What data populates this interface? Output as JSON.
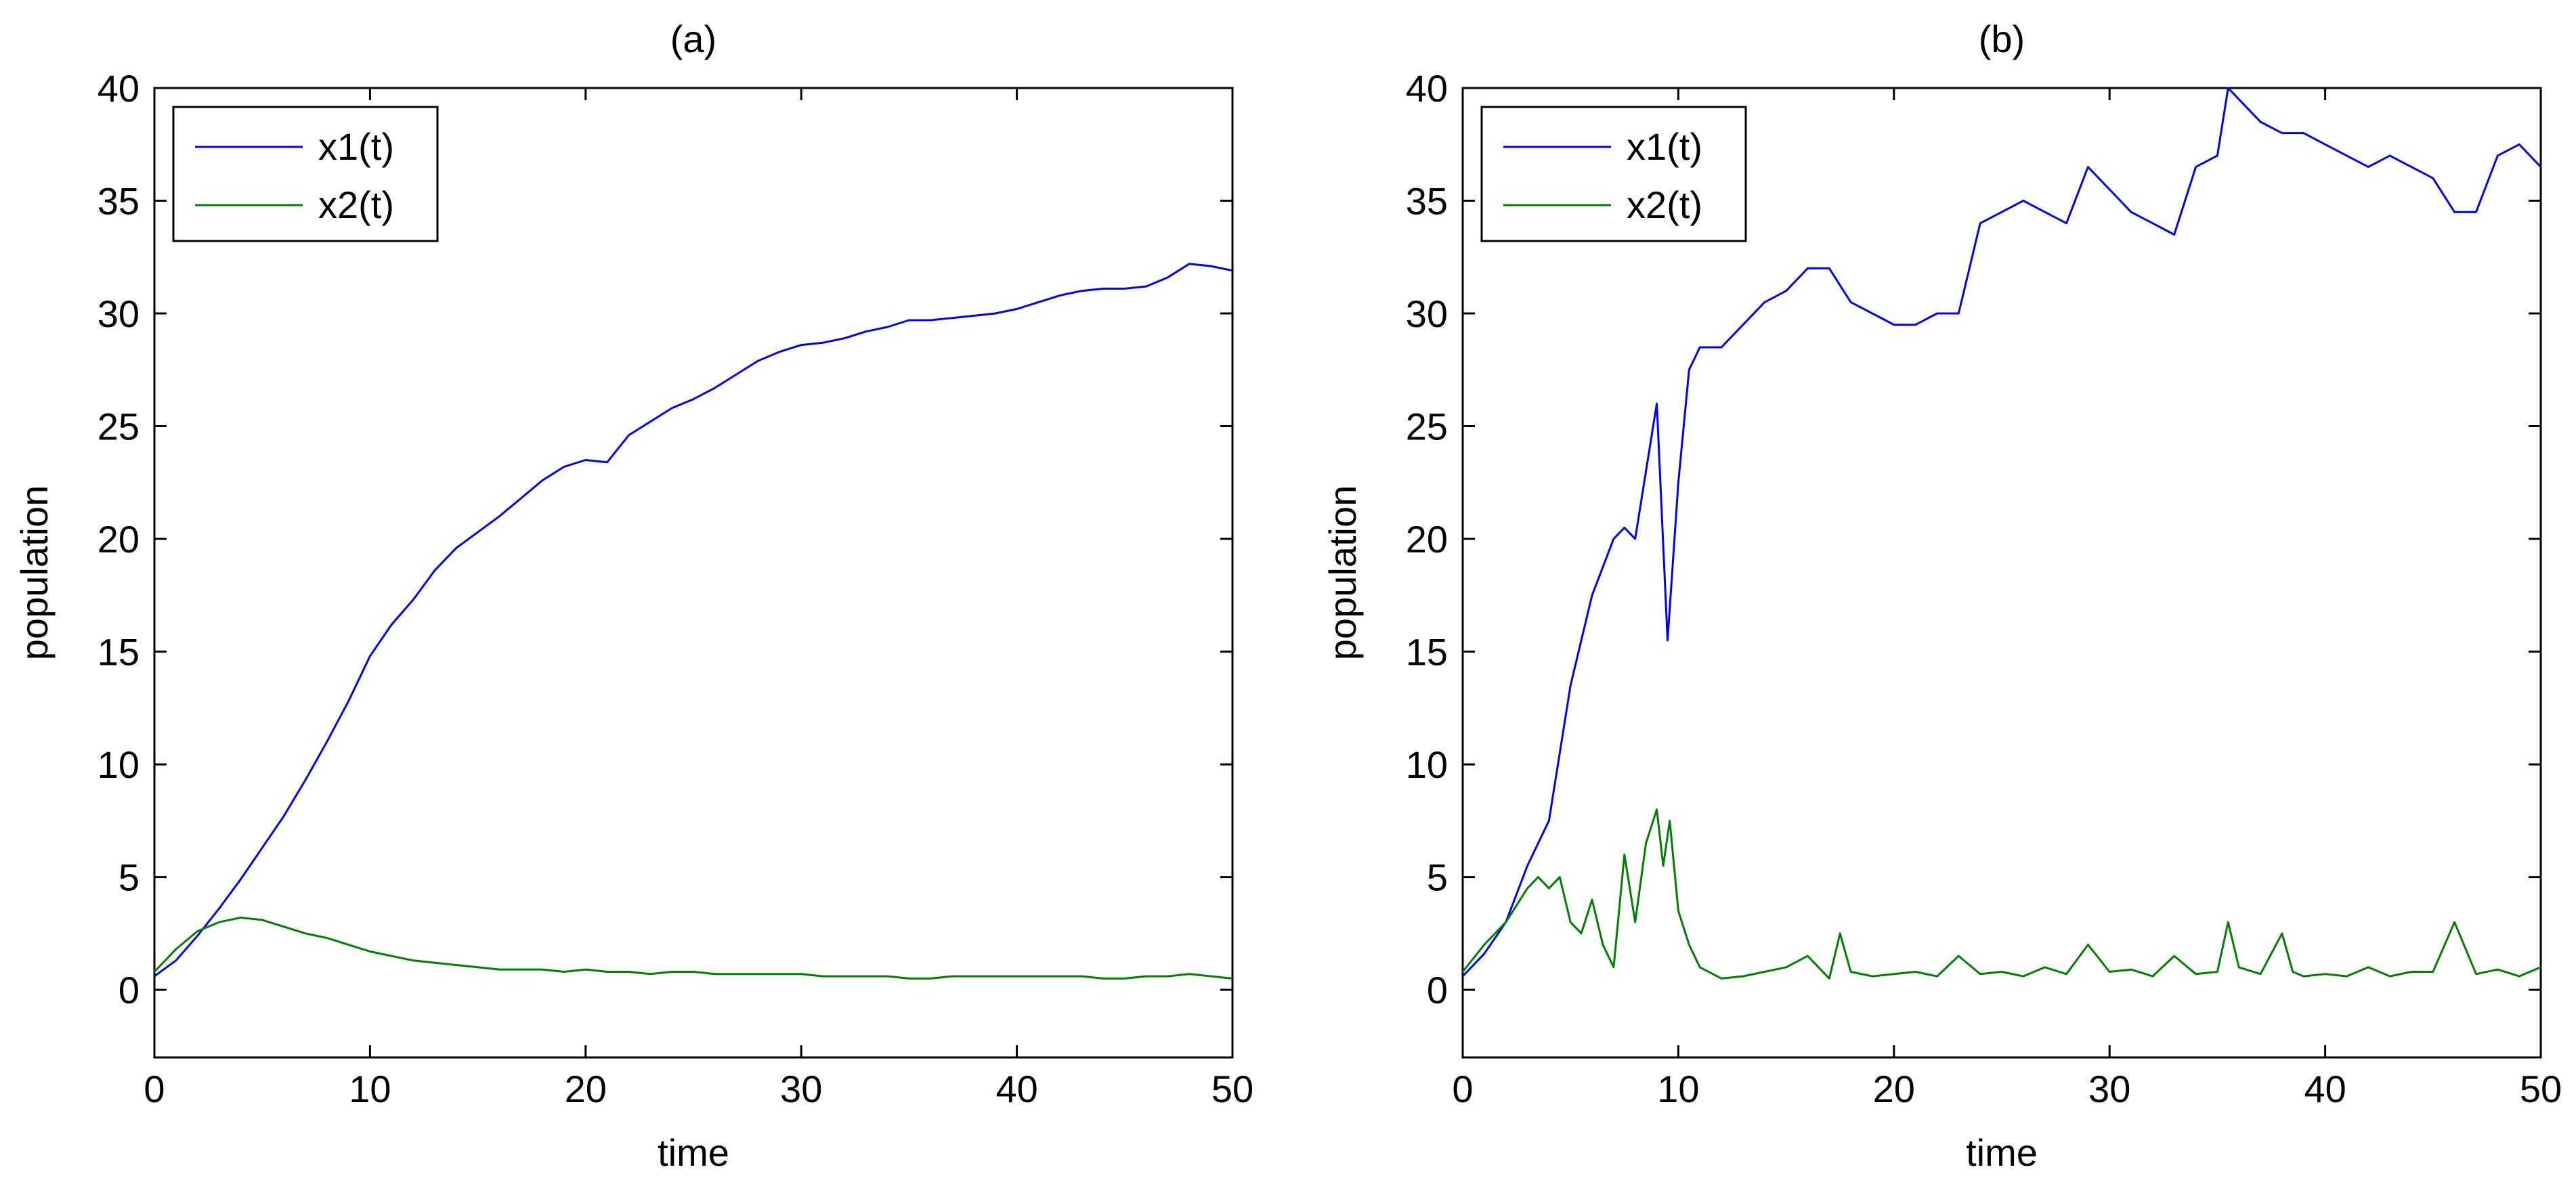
{
  "chart_data": [
    {
      "type": "line",
      "title": "(a)",
      "xlabel": "time",
      "ylabel": "population",
      "xlim": [
        0,
        50
      ],
      "ylim": [
        -3,
        40
      ],
      "xticks": [
        "0",
        "10",
        "20",
        "30",
        "40",
        "50"
      ],
      "yticks": [
        "0",
        "5",
        "10",
        "15",
        "20",
        "25",
        "30",
        "35",
        "40"
      ],
      "legend_position": "top-left",
      "series": [
        {
          "name": "x1(t)",
          "color": "#0000ff",
          "x": [
            0,
            1,
            2,
            3,
            4,
            5,
            6,
            7,
            8,
            9,
            10,
            11,
            12,
            13,
            14,
            15,
            16,
            17,
            18,
            19,
            20,
            21,
            22,
            23,
            24,
            25,
            26,
            27,
            28,
            29,
            30,
            31,
            32,
            33,
            34,
            35,
            36,
            37,
            38,
            39,
            40,
            41,
            42,
            43,
            44,
            45,
            46,
            47,
            48,
            49,
            50
          ],
          "y": [
            0.6,
            1.3,
            2.4,
            3.6,
            4.9,
            6.3,
            7.7,
            9.3,
            11.0,
            12.8,
            14.8,
            16.2,
            17.3,
            18.6,
            19.6,
            20.3,
            21.0,
            21.8,
            22.6,
            23.2,
            23.5,
            23.4,
            24.6,
            25.2,
            25.8,
            26.2,
            26.7,
            27.3,
            27.9,
            28.3,
            28.6,
            28.7,
            28.9,
            29.2,
            29.4,
            29.7,
            29.7,
            29.8,
            29.9,
            30.0,
            30.2,
            30.5,
            30.8,
            31.0,
            31.1,
            31.1,
            31.2,
            31.6,
            32.2,
            32.1,
            31.9
          ]
        },
        {
          "name": "x2(t)",
          "color": "#008000",
          "x": [
            0,
            1,
            2,
            3,
            4,
            5,
            6,
            7,
            8,
            9,
            10,
            11,
            12,
            13,
            14,
            15,
            16,
            17,
            18,
            19,
            20,
            21,
            22,
            23,
            24,
            25,
            26,
            27,
            28,
            29,
            30,
            31,
            32,
            33,
            34,
            35,
            36,
            37,
            38,
            39,
            40,
            41,
            42,
            43,
            44,
            45,
            46,
            47,
            48,
            49,
            50
          ],
          "y": [
            0.8,
            1.8,
            2.6,
            3.0,
            3.2,
            3.1,
            2.8,
            2.5,
            2.3,
            2.0,
            1.7,
            1.5,
            1.3,
            1.2,
            1.1,
            1.0,
            0.9,
            0.9,
            0.9,
            0.8,
            0.9,
            0.8,
            0.8,
            0.7,
            0.8,
            0.8,
            0.7,
            0.7,
            0.7,
            0.7,
            0.7,
            0.6,
            0.6,
            0.6,
            0.6,
            0.5,
            0.5,
            0.6,
            0.6,
            0.6,
            0.6,
            0.6,
            0.6,
            0.6,
            0.5,
            0.5,
            0.6,
            0.6,
            0.7,
            0.6,
            0.5
          ]
        }
      ]
    },
    {
      "type": "line",
      "title": "(b)",
      "xlabel": "time",
      "ylabel": "population",
      "xlim": [
        0,
        50
      ],
      "ylim": [
        -3,
        40
      ],
      "xticks": [
        "0",
        "10",
        "20",
        "30",
        "40",
        "50"
      ],
      "yticks": [
        "0",
        "5",
        "10",
        "15",
        "20",
        "25",
        "30",
        "35",
        "40"
      ],
      "legend_position": "top-left",
      "series": [
        {
          "name": "x1(t)",
          "color": "#0000ff",
          "x": [
            0,
            1,
            2,
            3,
            4,
            5,
            6,
            7,
            7.5,
            8,
            8.5,
            9,
            9.5,
            10,
            10.5,
            11,
            12,
            13,
            14,
            15,
            16,
            17,
            18,
            19,
            20,
            21,
            22,
            23,
            24,
            25,
            26,
            27,
            28,
            29,
            30,
            31,
            32,
            33,
            34,
            35,
            35.5,
            36,
            37,
            38,
            39,
            40,
            41,
            42,
            43,
            44,
            45,
            46,
            47,
            48,
            49,
            50
          ],
          "y": [
            0.6,
            1.6,
            3.0,
            5.5,
            7.5,
            13.5,
            17.5,
            20.0,
            20.5,
            20.0,
            23.0,
            26.0,
            15.5,
            22.5,
            27.5,
            28.5,
            28.5,
            29.5,
            30.5,
            31.0,
            32.0,
            32.0,
            30.5,
            30.0,
            29.5,
            29.5,
            30.0,
            30.0,
            34.0,
            34.5,
            35.0,
            34.5,
            34.0,
            36.5,
            35.5,
            34.5,
            34.0,
            33.5,
            36.5,
            37.0,
            40.0,
            39.5,
            38.5,
            38.0,
            38.0,
            37.5,
            37.0,
            36.5,
            37.0,
            36.5,
            36.0,
            34.5,
            34.5,
            37.0,
            37.5,
            36.5
          ]
        },
        {
          "name": "x2(t)",
          "color": "#008000",
          "x": [
            0,
            1,
            2,
            3,
            3.5,
            4,
            4.5,
            5,
            5.5,
            6,
            6.5,
            7,
            7.5,
            8,
            8.5,
            9,
            9.3,
            9.6,
            10,
            10.5,
            11,
            12,
            13,
            14,
            15,
            16,
            17,
            17.5,
            18,
            19,
            20,
            21,
            22,
            23,
            24,
            25,
            26,
            27,
            28,
            29,
            30,
            31,
            32,
            33,
            34,
            35,
            35.5,
            36,
            37,
            38,
            38.5,
            39,
            40,
            41,
            42,
            43,
            44,
            45,
            46,
            47,
            48,
            49,
            50
          ],
          "y": [
            0.8,
            2.0,
            3.0,
            4.5,
            5.0,
            4.5,
            5.0,
            3.0,
            2.5,
            4.0,
            2.0,
            1.0,
            6.0,
            3.0,
            6.5,
            8.0,
            5.5,
            7.5,
            3.5,
            2.0,
            1.0,
            0.5,
            0.6,
            0.8,
            1.0,
            1.5,
            0.5,
            2.5,
            0.8,
            0.6,
            0.7,
            0.8,
            0.6,
            1.5,
            0.7,
            0.8,
            0.6,
            1.0,
            0.7,
            2.0,
            0.8,
            0.9,
            0.6,
            1.5,
            0.7,
            0.8,
            3.0,
            1.0,
            0.7,
            2.5,
            0.8,
            0.6,
            0.7,
            0.6,
            1.0,
            0.6,
            0.8,
            0.8,
            3.0,
            0.7,
            0.9,
            0.6,
            1.0
          ]
        }
      ]
    }
  ]
}
